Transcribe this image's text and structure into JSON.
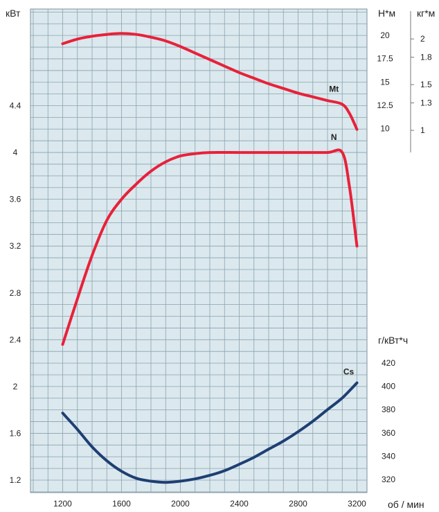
{
  "chart_data": {
    "type": "line",
    "grid": true,
    "x_unit": "об / мин",
    "x_ticks": [
      1200,
      1600,
      2000,
      2400,
      2800,
      3200
    ],
    "xlim": [
      1000,
      3250
    ],
    "power_axis": {
      "unit": "кВт",
      "ticks": [
        "1.2",
        "1.6",
        "2",
        "2.4",
        "2.8",
        "3.2",
        "3.6",
        "4",
        "4.4"
      ],
      "ylim": [
        1.2,
        4.4
      ]
    },
    "torque_axis_nm": {
      "unit": "Н*м",
      "ticks": [
        "10",
        "12.5",
        "15",
        "17.5",
        "20"
      ]
    },
    "torque_axis_kgm": {
      "unit": "кг*м",
      "ticks": [
        "1",
        "1.3",
        "1.5",
        "1.8",
        "2"
      ]
    },
    "consumption_axis": {
      "unit": "г/кВт*ч",
      "ticks": [
        "320",
        "340",
        "360",
        "380",
        "400",
        "420"
      ]
    },
    "series": [
      {
        "name": "Mt",
        "axis": "torque_nm",
        "color": "#e8213a",
        "points": [
          [
            1200,
            19.1
          ],
          [
            1300,
            19.6
          ],
          [
            1400,
            19.9
          ],
          [
            1500,
            20.1
          ],
          [
            1600,
            20.2
          ],
          [
            1700,
            20.1
          ],
          [
            1800,
            19.8
          ],
          [
            1900,
            19.4
          ],
          [
            2000,
            18.8
          ],
          [
            2100,
            18.1
          ],
          [
            2200,
            17.4
          ],
          [
            2300,
            16.7
          ],
          [
            2400,
            16.0
          ],
          [
            2500,
            15.4
          ],
          [
            2600,
            14.8
          ],
          [
            2700,
            14.3
          ],
          [
            2800,
            13.8
          ],
          [
            2900,
            13.4
          ],
          [
            3000,
            13.0
          ],
          [
            3100,
            12.6
          ],
          [
            3150,
            11.6
          ],
          [
            3200,
            9.9
          ]
        ]
      },
      {
        "name": "N",
        "axis": "power_kw",
        "color": "#e8213a",
        "points": [
          [
            1200,
            2.36
          ],
          [
            1300,
            2.75
          ],
          [
            1400,
            3.12
          ],
          [
            1500,
            3.42
          ],
          [
            1600,
            3.6
          ],
          [
            1700,
            3.73
          ],
          [
            1800,
            3.84
          ],
          [
            1900,
            3.92
          ],
          [
            2000,
            3.97
          ],
          [
            2100,
            3.99
          ],
          [
            2200,
            4.0
          ],
          [
            2400,
            4.0
          ],
          [
            2600,
            4.0
          ],
          [
            2800,
            4.0
          ],
          [
            3000,
            4.0
          ],
          [
            3100,
            4.0
          ],
          [
            3150,
            3.7
          ],
          [
            3200,
            3.2
          ]
        ]
      },
      {
        "name": "Cs",
        "axis": "consumption",
        "color": "#1e3f73",
        "points": [
          [
            1200,
            377
          ],
          [
            1300,
            363
          ],
          [
            1400,
            348
          ],
          [
            1500,
            336
          ],
          [
            1600,
            327
          ],
          [
            1700,
            321
          ],
          [
            1800,
            318.5
          ],
          [
            1900,
            317.5
          ],
          [
            2000,
            318.5
          ],
          [
            2100,
            320.5
          ],
          [
            2200,
            323.5
          ],
          [
            2300,
            327.5
          ],
          [
            2400,
            333
          ],
          [
            2500,
            339
          ],
          [
            2600,
            346
          ],
          [
            2700,
            353
          ],
          [
            2800,
            361
          ],
          [
            2900,
            370
          ],
          [
            3000,
            380
          ],
          [
            3100,
            390
          ],
          [
            3200,
            403
          ]
        ]
      }
    ]
  }
}
